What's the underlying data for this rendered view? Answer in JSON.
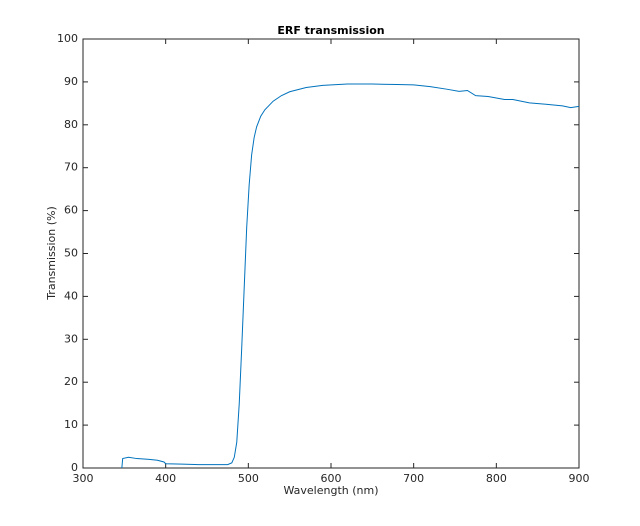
{
  "chart_data": {
    "type": "line",
    "title": "ERF transmission",
    "x_label": "Wavelength (nm)",
    "y_label": "Transmission (%)",
    "x": [
      347,
      348,
      355,
      365,
      380,
      390,
      398,
      400,
      420,
      440,
      460,
      475,
      480,
      483,
      486,
      489,
      492,
      495,
      498,
      501,
      504,
      507,
      510,
      515,
      520,
      530,
      540,
      550,
      570,
      590,
      620,
      650,
      680,
      700,
      720,
      740,
      755,
      765,
      775,
      790,
      810,
      820,
      840,
      860,
      880,
      890,
      900
    ],
    "values": [
      0,
      2.2,
      2.5,
      2.2,
      2.0,
      1.8,
      1.4,
      1.0,
      0.9,
      0.8,
      0.8,
      0.8,
      1.2,
      2.5,
      6,
      15,
      28,
      42,
      56,
      66,
      73,
      77,
      79.5,
      82,
      83.5,
      85.5,
      86.8,
      87.7,
      88.7,
      89.2,
      89.5,
      89.5,
      89.4,
      89.3,
      88.9,
      88.3,
      87.8,
      88.0,
      86.8,
      86.6,
      85.9,
      85.9,
      85.1,
      84.8,
      84.4,
      84.0,
      84.3
    ],
    "color": "#0072bd",
    "xlim": [
      300,
      900
    ],
    "xticks": [
      300,
      400,
      500,
      600,
      700,
      800,
      900
    ],
    "ylim": [
      0,
      100
    ],
    "yticks": [
      0,
      10,
      20,
      30,
      40,
      50,
      60,
      70,
      80,
      90,
      100
    ]
  }
}
